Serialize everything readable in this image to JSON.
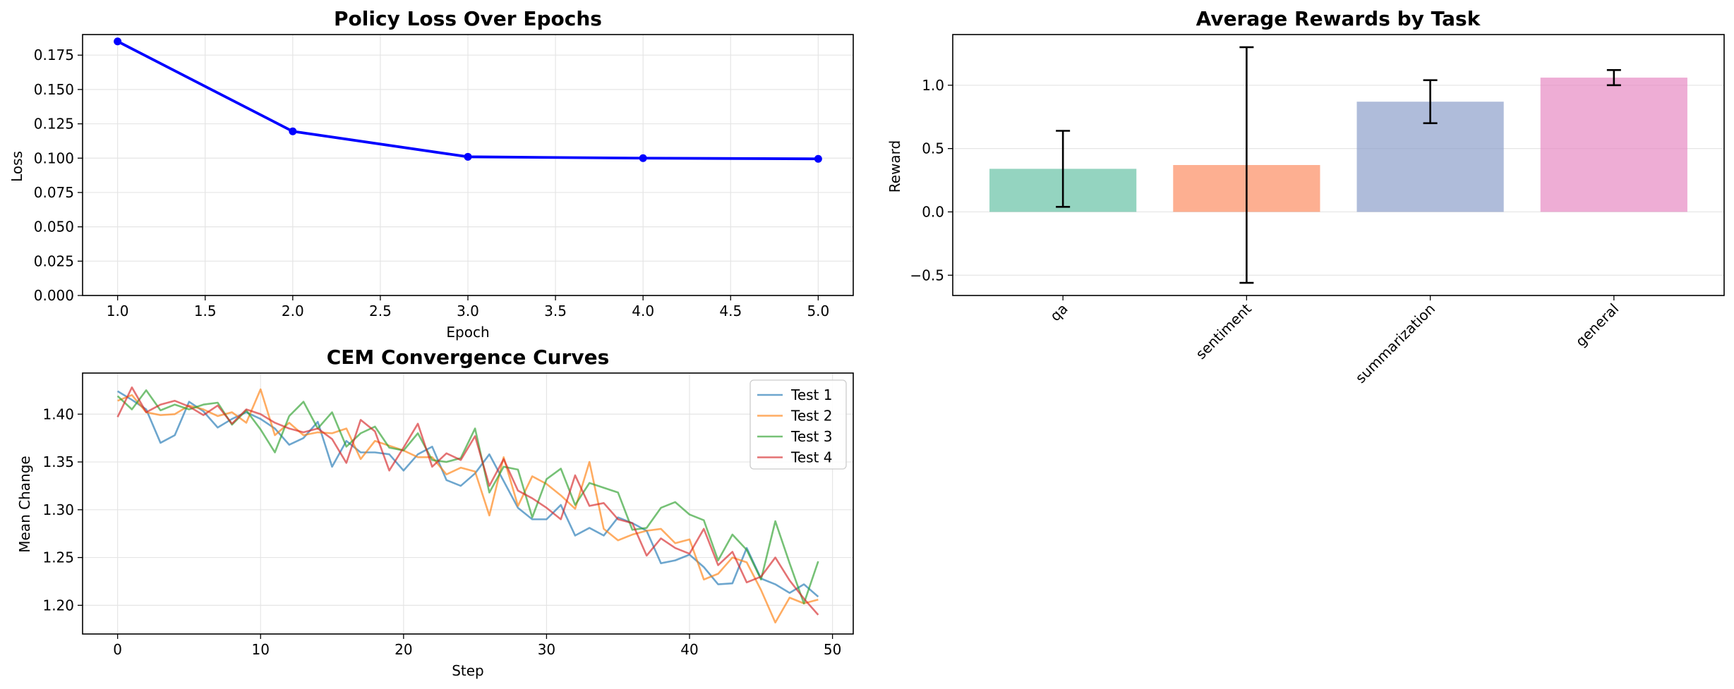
{
  "chart_data": [
    {
      "type": "line",
      "title": "Policy Loss Over Epochs",
      "xlabel": "Epoch",
      "ylabel": "Loss",
      "x": [
        1.0,
        2.0,
        3.0,
        4.0,
        5.0
      ],
      "series": [
        {
          "values": [
            0.185,
            0.1195,
            0.101,
            0.1,
            0.0995
          ],
          "color": "#0000ff",
          "marker": "circle"
        }
      ],
      "xlim": [
        0.8,
        5.2
      ],
      "ylim": [
        0,
        0.19
      ],
      "xticks": [
        "1.0",
        "1.5",
        "2.0",
        "2.5",
        "3.0",
        "3.5",
        "4.0",
        "4.5",
        "5.0"
      ],
      "yticks": [
        "0.000",
        "0.025",
        "0.050",
        "0.075",
        "0.100",
        "0.125",
        "0.150",
        "0.175"
      ],
      "grid": true
    },
    {
      "type": "bar",
      "title": "Average Rewards by Task",
      "xlabel": "",
      "ylabel": "Reward",
      "categories": [
        "qa",
        "sentiment",
        "summarization",
        "general"
      ],
      "values": [
        0.34,
        0.37,
        0.87,
        1.06
      ],
      "errors": [
        0.3,
        0.93,
        0.17,
        0.06
      ],
      "colors": [
        "#66c2a5",
        "#fc8d62",
        "#8da0cb",
        "#e78ac3"
      ],
      "ylim": [
        -0.66,
        1.4
      ],
      "yticks": [
        "−0.5",
        "0.0",
        "0.5",
        "1.0"
      ],
      "grid": true
    },
    {
      "type": "line",
      "title": "CEM Convergence Curves",
      "xlabel": "Step",
      "ylabel": "Mean Change",
      "xlim": [
        -2.45,
        51.45
      ],
      "ylim": [
        1.17,
        1.443
      ],
      "xticks": [
        "0",
        "10",
        "20",
        "30",
        "40",
        "50"
      ],
      "yticks": [
        "1.20",
        "1.25",
        "1.30",
        "1.35",
        "1.40"
      ],
      "legend": "top-right",
      "grid": true,
      "series": [
        {
          "name": "Test 1",
          "color": "#1f77b4",
          "values": [
            1.424,
            1.415,
            1.405,
            1.37,
            1.378,
            1.413,
            1.403,
            1.386,
            1.395,
            1.402,
            1.395,
            1.385,
            1.368,
            1.375,
            1.392,
            1.345,
            1.372,
            1.36,
            1.36,
            1.358,
            1.341,
            1.358,
            1.366,
            1.331,
            1.325,
            1.338,
            1.358,
            1.33,
            1.302,
            1.29,
            1.29,
            1.305,
            1.273,
            1.281,
            1.273,
            1.292,
            1.286,
            1.278,
            1.244,
            1.247,
            1.253,
            1.24,
            1.222,
            1.223,
            1.26,
            1.228,
            1.222,
            1.213,
            1.222,
            1.209
          ]
        },
        {
          "name": "Test 2",
          "color": "#ff7f0e",
          "values": [
            1.414,
            1.42,
            1.402,
            1.399,
            1.4,
            1.409,
            1.405,
            1.398,
            1.402,
            1.391,
            1.426,
            1.378,
            1.391,
            1.378,
            1.381,
            1.38,
            1.385,
            1.353,
            1.372,
            1.367,
            1.362,
            1.355,
            1.355,
            1.337,
            1.344,
            1.34,
            1.294,
            1.355,
            1.304,
            1.335,
            1.327,
            1.315,
            1.301,
            1.35,
            1.28,
            1.268,
            1.274,
            1.278,
            1.28,
            1.265,
            1.269,
            1.227,
            1.233,
            1.25,
            1.245,
            1.216,
            1.182,
            1.208,
            1.202,
            1.206
          ]
        },
        {
          "name": "Test 3",
          "color": "#2ca02c",
          "values": [
            1.419,
            1.405,
            1.425,
            1.404,
            1.41,
            1.405,
            1.41,
            1.412,
            1.389,
            1.404,
            1.384,
            1.36,
            1.398,
            1.413,
            1.385,
            1.402,
            1.366,
            1.38,
            1.387,
            1.365,
            1.362,
            1.38,
            1.352,
            1.35,
            1.354,
            1.385,
            1.318,
            1.345,
            1.342,
            1.292,
            1.332,
            1.343,
            1.305,
            1.328,
            1.323,
            1.318,
            1.279,
            1.281,
            1.302,
            1.308,
            1.295,
            1.289,
            1.247,
            1.274,
            1.258,
            1.227,
            1.288,
            1.244,
            1.202,
            1.246
          ]
        },
        {
          "name": "Test 4",
          "color": "#d62728",
          "values": [
            1.397,
            1.428,
            1.402,
            1.41,
            1.414,
            1.408,
            1.399,
            1.409,
            1.39,
            1.405,
            1.4,
            1.391,
            1.385,
            1.381,
            1.385,
            1.374,
            1.349,
            1.394,
            1.382,
            1.341,
            1.365,
            1.39,
            1.345,
            1.359,
            1.352,
            1.377,
            1.325,
            1.353,
            1.32,
            1.312,
            1.302,
            1.29,
            1.336,
            1.304,
            1.307,
            1.29,
            1.286,
            1.252,
            1.27,
            1.26,
            1.254,
            1.28,
            1.242,
            1.256,
            1.224,
            1.23,
            1.25,
            1.226,
            1.207,
            1.19
          ]
        }
      ]
    }
  ]
}
